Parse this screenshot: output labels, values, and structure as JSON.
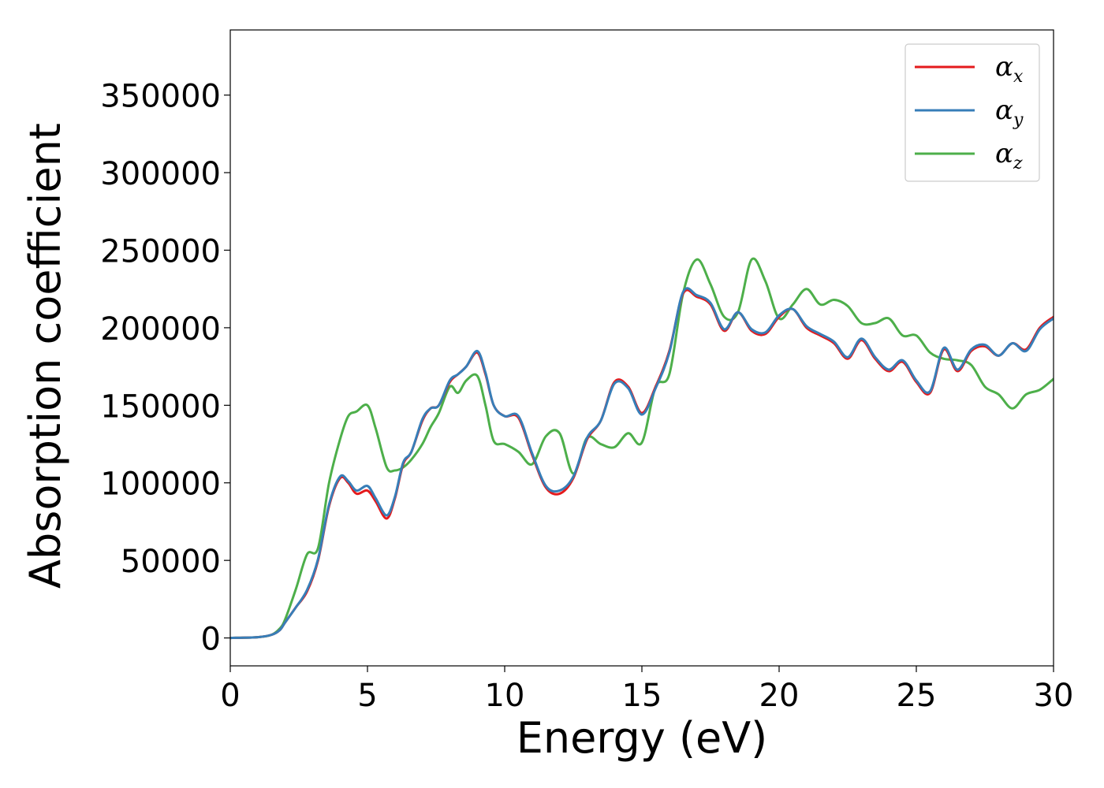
{
  "chart_data": {
    "type": "line",
    "xlabel": "Energy (eV)",
    "ylabel": "Absorption coefficient",
    "xlim": [
      0,
      30
    ],
    "ylim": [
      -18000,
      392000
    ],
    "xticks": [
      0,
      5,
      10,
      15,
      20,
      25,
      30
    ],
    "yticks": [
      0,
      50000,
      100000,
      150000,
      200000,
      250000,
      300000,
      350000
    ],
    "grid": false,
    "legend_position": "top-right",
    "series": [
      {
        "name": "αx",
        "name_base": "α",
        "name_sub": "x",
        "color": "#e41a1c",
        "x": [
          0,
          1,
          1.5,
          1.8,
          2,
          2.4,
          2.8,
          3.2,
          3.6,
          4,
          4.3,
          4.6,
          5,
          5.3,
          5.7,
          6,
          6.3,
          6.6,
          7,
          7.3,
          7.6,
          8,
          8.3,
          8.6,
          9,
          9.3,
          9.6,
          10,
          10.5,
          11,
          11.5,
          12,
          12.5,
          13,
          13.5,
          14,
          14.5,
          15,
          15.5,
          16,
          16.5,
          17,
          17.5,
          18,
          18.5,
          19,
          19.5,
          20,
          20.5,
          21,
          21.5,
          22,
          22.5,
          23,
          23.5,
          24,
          24.5,
          25,
          25.5,
          26,
          26.5,
          27,
          27.5,
          28,
          28.5,
          29,
          29.5,
          30
        ],
        "y": [
          0,
          500,
          2000,
          5000,
          10000,
          20000,
          30000,
          50000,
          85000,
          103000,
          100000,
          93000,
          95000,
          88000,
          77000,
          90000,
          112000,
          120000,
          140000,
          148000,
          150000,
          165000,
          170000,
          175000,
          184000,
          170000,
          150000,
          143000,
          142000,
          118000,
          97000,
          93000,
          103000,
          128000,
          140000,
          165000,
          162000,
          145000,
          162000,
          185000,
          222000,
          220000,
          215000,
          198000,
          210000,
          198000,
          196000,
          207000,
          212000,
          200000,
          195000,
          190000,
          180000,
          192000,
          180000,
          172000,
          178000,
          165000,
          158000,
          186000,
          172000,
          185000,
          188000,
          182000,
          190000,
          186000,
          200000,
          207000
        ]
      },
      {
        "name": "αy",
        "name_base": "α",
        "name_sub": "y",
        "color": "#377eb8",
        "x": [
          0,
          1,
          1.5,
          1.8,
          2,
          2.4,
          2.8,
          3.2,
          3.6,
          4,
          4.3,
          4.6,
          5,
          5.3,
          5.7,
          6,
          6.3,
          6.6,
          7,
          7.3,
          7.6,
          8,
          8.3,
          8.6,
          9,
          9.3,
          9.6,
          10,
          10.5,
          11,
          11.5,
          12,
          12.5,
          13,
          13.5,
          14,
          14.5,
          15,
          15.5,
          16,
          16.5,
          17,
          17.5,
          18,
          18.5,
          19,
          19.5,
          20,
          20.5,
          21,
          21.5,
          22,
          22.5,
          23,
          23.5,
          24,
          24.5,
          25,
          25.5,
          26,
          26.5,
          27,
          27.5,
          28,
          28.5,
          29,
          29.5,
          30
        ],
        "y": [
          0,
          500,
          2000,
          5000,
          10000,
          20000,
          31000,
          51000,
          86000,
          104000,
          101000,
          95000,
          98000,
          90000,
          79000,
          91000,
          113000,
          120000,
          141000,
          148000,
          150000,
          166000,
          170000,
          175000,
          185000,
          171000,
          150000,
          143000,
          143000,
          119000,
          98000,
          95000,
          104000,
          129000,
          140000,
          164000,
          161000,
          144000,
          161000,
          184000,
          223000,
          221000,
          216000,
          199000,
          210000,
          199000,
          197000,
          208000,
          212000,
          201000,
          196000,
          191000,
          181000,
          193000,
          181000,
          173000,
          179000,
          166000,
          159000,
          187000,
          173000,
          186000,
          189000,
          182000,
          190000,
          185000,
          199000,
          206000
        ]
      },
      {
        "name": "αz",
        "name_base": "α",
        "name_sub": "z",
        "color": "#4daf4a",
        "x": [
          0,
          1,
          1.5,
          1.8,
          2,
          2.4,
          2.8,
          3.2,
          3.6,
          4,
          4.3,
          4.6,
          5,
          5.3,
          5.7,
          6,
          6.3,
          6.6,
          7,
          7.3,
          7.6,
          8,
          8.3,
          8.6,
          9,
          9.3,
          9.6,
          10,
          10.5,
          11,
          11.5,
          12,
          12.5,
          13,
          13.5,
          14,
          14.5,
          15,
          15.5,
          16,
          16.5,
          17,
          17.5,
          18,
          18.5,
          19,
          19.5,
          20,
          20.5,
          21,
          21.5,
          22,
          22.5,
          23,
          23.5,
          24,
          24.5,
          25,
          25.5,
          26,
          26.5,
          27,
          27.5,
          28,
          28.5,
          29,
          29.5,
          30
        ],
        "y": [
          0,
          500,
          2000,
          6000,
          12000,
          32000,
          54000,
          58000,
          100000,
          128000,
          143000,
          146000,
          150000,
          135000,
          110000,
          108000,
          110000,
          115000,
          125000,
          136000,
          145000,
          162000,
          158000,
          166000,
          169000,
          150000,
          127000,
          125000,
          120000,
          112000,
          130000,
          132000,
          106000,
          129000,
          125000,
          123000,
          132000,
          126000,
          162000,
          170000,
          222000,
          244000,
          228000,
          207000,
          210000,
          244000,
          230000,
          206000,
          215000,
          225000,
          215000,
          218000,
          214000,
          203000,
          203000,
          206000,
          195000,
          195000,
          184000,
          180000,
          179000,
          176000,
          162000,
          157000,
          148000,
          157000,
          160000,
          167000
        ]
      }
    ]
  }
}
